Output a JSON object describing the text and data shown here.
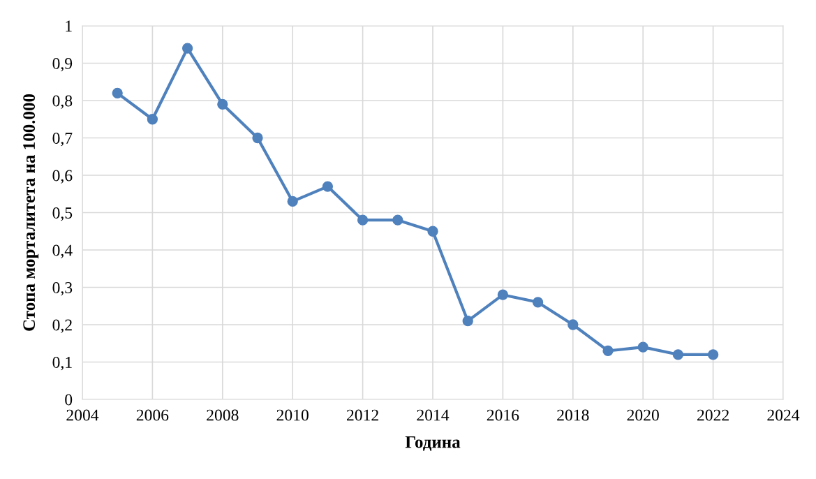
{
  "chart_data": {
    "type": "line",
    "xlabel": "Година",
    "ylabel": "Стопа морталитета на 100.000",
    "x": [
      2005,
      2006,
      2007,
      2008,
      2009,
      2010,
      2011,
      2012,
      2013,
      2014,
      2015,
      2016,
      2017,
      2018,
      2019,
      2020,
      2021,
      2022
    ],
    "series": [
      {
        "color": "#4f81bd",
        "values": [
          0.82,
          0.75,
          0.94,
          0.79,
          0.7,
          0.53,
          0.57,
          0.48,
          0.48,
          0.45,
          0.21,
          0.28,
          0.26,
          0.2,
          0.13,
          0.14,
          0.12,
          0.12
        ]
      }
    ],
    "xlim": [
      2004,
      2024
    ],
    "xticks": [
      2004,
      2006,
      2008,
      2010,
      2012,
      2014,
      2016,
      2018,
      2020,
      2022,
      2024
    ],
    "ylim": [
      0,
      1
    ],
    "yticks": [
      0,
      {
        "value": 0.1,
        "label": "0,1"
      },
      {
        "value": 0.2,
        "label": "0,2"
      },
      {
        "value": 0.3,
        "label": "0,3"
      },
      {
        "value": 0.4,
        "label": "0,4"
      },
      {
        "value": 0.5,
        "label": "0,5"
      },
      {
        "value": 0.6,
        "label": "0,6"
      },
      {
        "value": 0.7,
        "label": "0,7"
      },
      {
        "value": 0.8,
        "label": "0,8"
      },
      {
        "value": 0.9,
        "label": "0,9"
      },
      1
    ],
    "grid": true,
    "marker": "circle",
    "line_style": "solid"
  }
}
